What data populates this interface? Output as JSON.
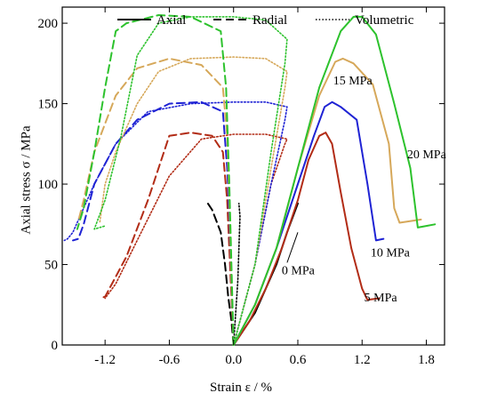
{
  "chart_data": {
    "type": "line",
    "title": "",
    "xlabel": "Strain ε / %",
    "ylabel": "Axial stress σ / MPa",
    "xlim": [
      -1.6,
      1.97
    ],
    "ylim": [
      0,
      210
    ],
    "x_ticks": [
      -1.2,
      -0.6,
      0.0,
      0.6,
      1.2,
      1.8
    ],
    "y_ticks": [
      0,
      50,
      100,
      150,
      200
    ],
    "x_tick_labels": [
      "-1.2",
      "-0.6",
      "0.0",
      "0.6",
      "1.2",
      "1.8"
    ],
    "y_tick_labels": [
      "0",
      "50",
      "100",
      "150",
      "200"
    ],
    "grid": false,
    "legend": {
      "placement": "top",
      "entries": [
        {
          "label": "Axial",
          "style": "solid"
        },
        {
          "label": "Radial",
          "style": "dashed"
        },
        {
          "label": "Volumetric",
          "style": "dotted"
        }
      ]
    },
    "annotations": [
      {
        "text": "0 MPa",
        "x": 0.45,
        "y": 44,
        "pointer_to": [
          0.6,
          70
        ]
      },
      {
        "text": "5 MPa",
        "x": 1.22,
        "y": 27
      },
      {
        "text": "10 MPa",
        "x": 1.28,
        "y": 55
      },
      {
        "text": "15 MPa",
        "x": 0.93,
        "y": 162
      },
      {
        "text": "20 MPa",
        "x": 1.62,
        "y": 116
      }
    ],
    "series": [
      {
        "group": "0 MPa",
        "kind": "axial",
        "color": "#000000",
        "style": "solid",
        "points": [
          [
            0,
            0
          ],
          [
            0.1,
            10
          ],
          [
            0.2,
            20
          ],
          [
            0.3,
            35
          ],
          [
            0.4,
            50
          ],
          [
            0.5,
            70
          ],
          [
            0.6,
            88
          ]
        ]
      },
      {
        "group": "0 MPa",
        "kind": "radial",
        "color": "#000000",
        "style": "dashed",
        "points": [
          [
            0,
            0
          ],
          [
            -0.02,
            15
          ],
          [
            -0.05,
            30
          ],
          [
            -0.08,
            50
          ],
          [
            -0.12,
            70
          ],
          [
            -0.2,
            84
          ],
          [
            -0.25,
            89
          ]
        ]
      },
      {
        "group": "0 MPa",
        "kind": "volumetric",
        "color": "#000000",
        "style": "dotted",
        "points": [
          [
            0,
            0
          ],
          [
            0.02,
            20
          ],
          [
            0.04,
            40
          ],
          [
            0.05,
            60
          ],
          [
            0.06,
            80
          ],
          [
            0.05,
            88
          ]
        ]
      },
      {
        "group": "5 MPa",
        "kind": "axial",
        "color": "#b22c16",
        "style": "solid",
        "points": [
          [
            0,
            0
          ],
          [
            0.15,
            15
          ],
          [
            0.3,
            35
          ],
          [
            0.45,
            60
          ],
          [
            0.6,
            90
          ],
          [
            0.7,
            115
          ],
          [
            0.8,
            130
          ],
          [
            0.86,
            132
          ],
          [
            0.92,
            125
          ],
          [
            1.0,
            95
          ],
          [
            1.1,
            60
          ],
          [
            1.2,
            35
          ],
          [
            1.25,
            28
          ],
          [
            1.36,
            29
          ]
        ]
      },
      {
        "group": "5 MPa",
        "kind": "radial",
        "color": "#b22c16",
        "style": "dashed",
        "points": [
          [
            0,
            0
          ],
          [
            -0.02,
            30
          ],
          [
            -0.04,
            60
          ],
          [
            -0.06,
            90
          ],
          [
            -0.1,
            120
          ],
          [
            -0.2,
            130
          ],
          [
            -0.4,
            132
          ],
          [
            -0.6,
            130
          ],
          [
            -0.8,
            90
          ],
          [
            -1.0,
            55
          ],
          [
            -1.2,
            30
          ],
          [
            -1.25,
            29
          ]
        ]
      },
      {
        "group": "5 MPa",
        "kind": "volumetric",
        "color": "#b22c16",
        "style": "dotted",
        "points": [
          [
            0,
            0
          ],
          [
            0.2,
            50
          ],
          [
            0.35,
            100
          ],
          [
            0.48,
            125
          ],
          [
            0.5,
            128
          ],
          [
            0.3,
            131
          ],
          [
            0.0,
            131
          ],
          [
            -0.3,
            128
          ],
          [
            -0.6,
            105
          ],
          [
            -0.9,
            65
          ],
          [
            -1.1,
            38
          ],
          [
            -1.2,
            29
          ]
        ]
      },
      {
        "group": "10 MPa",
        "kind": "axial",
        "color": "#1f23d4",
        "style": "solid",
        "points": [
          [
            0,
            0
          ],
          [
            0.2,
            25
          ],
          [
            0.4,
            60
          ],
          [
            0.6,
            100
          ],
          [
            0.75,
            130
          ],
          [
            0.85,
            148
          ],
          [
            0.92,
            151
          ],
          [
            1.0,
            148
          ],
          [
            1.15,
            140
          ],
          [
            1.25,
            100
          ],
          [
            1.33,
            65
          ],
          [
            1.4,
            66
          ]
        ]
      },
      {
        "group": "10 MPa",
        "kind": "radial",
        "color": "#1f23d4",
        "style": "dashed",
        "points": [
          [
            0,
            0
          ],
          [
            -0.02,
            40
          ],
          [
            -0.04,
            80
          ],
          [
            -0.06,
            110
          ],
          [
            -0.1,
            145
          ],
          [
            -0.3,
            151
          ],
          [
            -0.6,
            150
          ],
          [
            -0.9,
            140
          ],
          [
            -1.1,
            125
          ],
          [
            -1.3,
            100
          ],
          [
            -1.4,
            75
          ],
          [
            -1.45,
            66
          ],
          [
            -1.5,
            65
          ]
        ]
      },
      {
        "group": "10 MPa",
        "kind": "volumetric",
        "color": "#1f23d4",
        "style": "dotted",
        "points": [
          [
            0,
            0
          ],
          [
            0.2,
            50
          ],
          [
            0.35,
            100
          ],
          [
            0.48,
            140
          ],
          [
            0.5,
            148
          ],
          [
            0.3,
            151
          ],
          [
            0.0,
            151
          ],
          [
            -0.4,
            150
          ],
          [
            -0.8,
            145
          ],
          [
            -1.1,
            125
          ],
          [
            -1.3,
            100
          ],
          [
            -1.5,
            70
          ],
          [
            -1.55,
            66
          ],
          [
            -1.58,
            65
          ]
        ]
      },
      {
        "group": "15 MPa",
        "kind": "axial",
        "color": "#d6a85a",
        "style": "solid",
        "points": [
          [
            0,
            0
          ],
          [
            0.2,
            25
          ],
          [
            0.4,
            60
          ],
          [
            0.6,
            110
          ],
          [
            0.8,
            155
          ],
          [
            0.95,
            176
          ],
          [
            1.02,
            178
          ],
          [
            1.12,
            175
          ],
          [
            1.3,
            162
          ],
          [
            1.45,
            125
          ],
          [
            1.5,
            85
          ],
          [
            1.55,
            76
          ],
          [
            1.75,
            78
          ]
        ]
      },
      {
        "group": "15 MPa",
        "kind": "radial",
        "color": "#d6a85a",
        "style": "dashed",
        "points": [
          [
            0,
            0
          ],
          [
            -0.02,
            40
          ],
          [
            -0.04,
            90
          ],
          [
            -0.06,
            130
          ],
          [
            -0.1,
            160
          ],
          [
            -0.3,
            174
          ],
          [
            -0.6,
            178
          ],
          [
            -0.9,
            172
          ],
          [
            -1.1,
            155
          ],
          [
            -1.3,
            120
          ],
          [
            -1.4,
            90
          ],
          [
            -1.45,
            77
          ]
        ]
      },
      {
        "group": "15 MPa",
        "kind": "volumetric",
        "color": "#d6a85a",
        "style": "dotted",
        "points": [
          [
            0,
            0
          ],
          [
            0.2,
            50
          ],
          [
            0.35,
            110
          ],
          [
            0.48,
            160
          ],
          [
            0.5,
            170
          ],
          [
            0.3,
            178
          ],
          [
            0.0,
            179
          ],
          [
            -0.4,
            178
          ],
          [
            -0.7,
            170
          ],
          [
            -0.9,
            150
          ],
          [
            -1.1,
            120
          ],
          [
            -1.2,
            100
          ],
          [
            -1.25,
            76
          ]
        ]
      },
      {
        "group": "20 MPa",
        "kind": "axial",
        "color": "#2dc22d",
        "style": "solid",
        "points": [
          [
            0,
            0
          ],
          [
            0.2,
            25
          ],
          [
            0.4,
            60
          ],
          [
            0.6,
            110
          ],
          [
            0.8,
            160
          ],
          [
            1.0,
            195
          ],
          [
            1.12,
            204
          ],
          [
            1.2,
            204
          ],
          [
            1.33,
            193
          ],
          [
            1.5,
            150
          ],
          [
            1.65,
            110
          ],
          [
            1.72,
            73
          ],
          [
            1.8,
            74
          ],
          [
            1.88,
            75
          ]
        ]
      },
      {
        "group": "20 MPa",
        "kind": "radial",
        "color": "#2dc22d",
        "style": "dashed",
        "points": [
          [
            0,
            0
          ],
          [
            -0.02,
            50
          ],
          [
            -0.04,
            100
          ],
          [
            -0.07,
            160
          ],
          [
            -0.12,
            195
          ],
          [
            -0.4,
            204
          ],
          [
            -0.7,
            205
          ],
          [
            -1.0,
            200
          ],
          [
            -1.1,
            195
          ],
          [
            -1.2,
            160
          ],
          [
            -1.3,
            120
          ],
          [
            -1.4,
            85
          ],
          [
            -1.46,
            72
          ]
        ]
      },
      {
        "group": "20 MPa",
        "kind": "volumetric",
        "color": "#2dc22d",
        "style": "dotted",
        "points": [
          [
            0,
            0
          ],
          [
            0.2,
            50
          ],
          [
            0.35,
            120
          ],
          [
            0.48,
            175
          ],
          [
            0.5,
            190
          ],
          [
            0.3,
            202
          ],
          [
            0.0,
            204
          ],
          [
            -0.4,
            204
          ],
          [
            -0.7,
            200
          ],
          [
            -0.9,
            180
          ],
          [
            -1.05,
            130
          ],
          [
            -1.2,
            90
          ],
          [
            -1.3,
            72
          ],
          [
            -1.2,
            74
          ]
        ]
      }
    ]
  }
}
